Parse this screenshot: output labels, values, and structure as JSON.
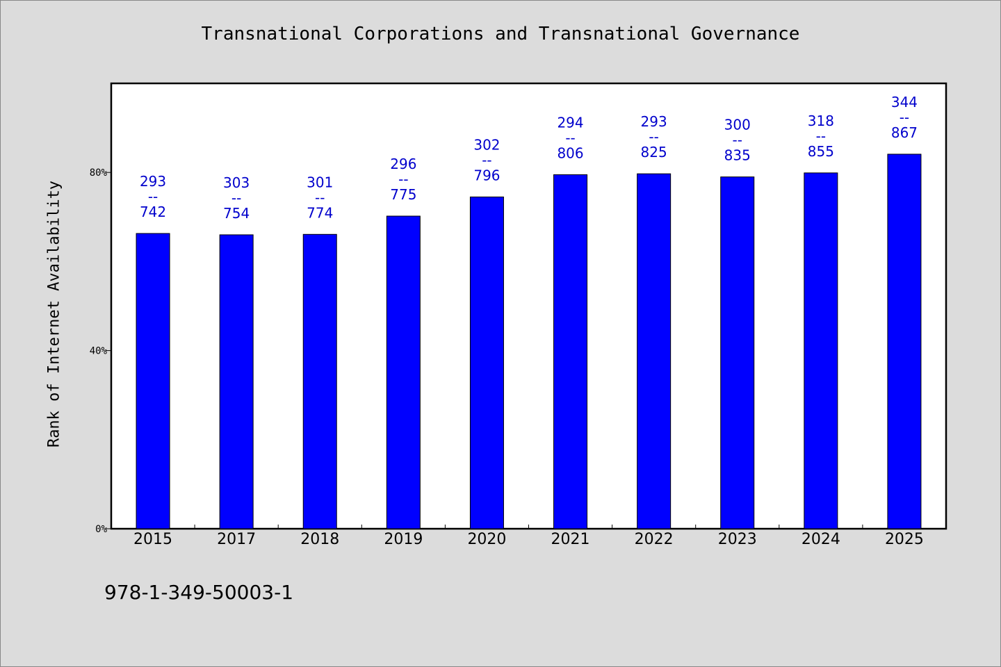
{
  "chart_data": {
    "type": "bar",
    "title": "Transnational Corporations and Transnational Governance",
    "xlabel": "",
    "ylabel": "Rank of Internet Availability",
    "ylim": [
      0,
      100
    ],
    "yticks": [
      "0%",
      "40%",
      "80%"
    ],
    "ytick_values": [
      0,
      40,
      80
    ],
    "grid": false,
    "bar_color": "#0000ff",
    "label_color": "#0000cc",
    "categories": [
      "2015",
      "2017",
      "2018",
      "2019",
      "2020",
      "2021",
      "2022",
      "2023",
      "2024",
      "2025"
    ],
    "values": [
      66.3,
      66.0,
      66.1,
      70.2,
      74.5,
      79.5,
      79.7,
      79.0,
      79.9,
      84.1
    ],
    "labels": [
      [
        "293",
        "--",
        "742"
      ],
      [
        "303",
        "--",
        "754"
      ],
      [
        "301",
        "--",
        "774"
      ],
      [
        "296",
        "--",
        "775"
      ],
      [
        "302",
        "--",
        "796"
      ],
      [
        "294",
        "--",
        "806"
      ],
      [
        "293",
        "--",
        "825"
      ],
      [
        "300",
        "--",
        "835"
      ],
      [
        "318",
        "--",
        "855"
      ],
      [
        "344",
        "--",
        "867"
      ]
    ]
  },
  "footer_text": "978-1-349-50003-1"
}
